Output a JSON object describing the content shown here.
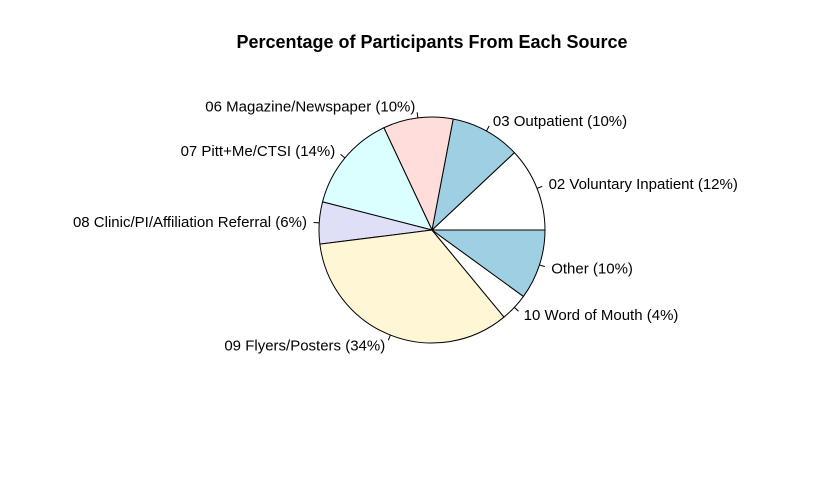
{
  "chart_data": {
    "type": "pie",
    "title": "Percentage of Participants From Each Source",
    "start": "counter-clockwise from 3 o'clock",
    "slices": [
      {
        "label": "02 Voluntary Inpatient (12%)",
        "value": 12,
        "color": "#FFFFFF"
      },
      {
        "label": "03 Outpatient (10%)",
        "value": 10,
        "color": "#9ECFE2"
      },
      {
        "label": "06 Magazine/Newspaper (10%)",
        "value": 10,
        "color": "#FFDDDB"
      },
      {
        "label": "07 Pitt+Me/CTSI (14%)",
        "value": 14,
        "color": "#DBFFFF"
      },
      {
        "label": "08 Clinic/PI/Affiliation Referral (6%)",
        "value": 6,
        "color": "#DFDFF7"
      },
      {
        "label": "09 Flyers/Posters (34%)",
        "value": 34,
        "color": "#FFF6D5"
      },
      {
        "label": "10 Word of Mouth (4%)",
        "value": 4,
        "color": "#FFFFFF"
      },
      {
        "label": "Other (10%)",
        "value": 10,
        "color": "#9ECFE2"
      }
    ]
  }
}
